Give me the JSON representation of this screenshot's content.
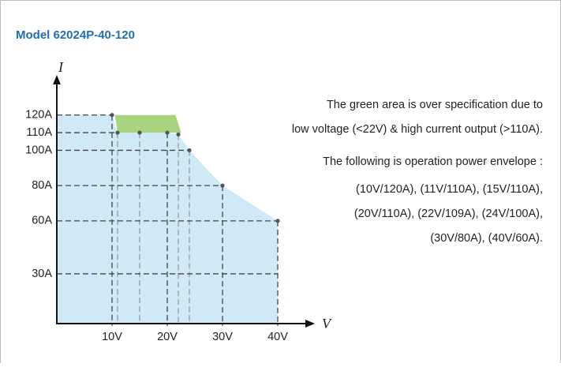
{
  "chart_data": {
    "type": "envelope",
    "title": "Model 62024P-40-120",
    "x_label": "V",
    "y_label": "I",
    "x": [
      10,
      11,
      15,
      20,
      22,
      24,
      30,
      40
    ],
    "values": [
      120,
      110,
      110,
      110,
      109,
      100,
      80,
      60
    ],
    "color": "#cfe9f7",
    "over_spec": {
      "color": "#a9d47f",
      "x": [
        10.5,
        21.5,
        22.5,
        11
      ],
      "values": [
        120,
        120,
        110,
        110
      ]
    },
    "xlim": [
      0,
      45
    ],
    "ylim": [
      0,
      140
    ],
    "xticks": [
      {
        "value": 10,
        "label": "10V"
      },
      {
        "value": 20,
        "label": "20V"
      },
      {
        "value": 30,
        "label": "30V"
      },
      {
        "value": 40,
        "label": "40V"
      }
    ],
    "yticks": [
      {
        "value": 30,
        "label": "30A"
      },
      {
        "value": 60,
        "label": "60A"
      },
      {
        "value": 80,
        "label": "80A"
      },
      {
        "value": 100,
        "label": "100A"
      },
      {
        "value": 110,
        "label": "110A"
      },
      {
        "value": 120,
        "label": "120A"
      }
    ],
    "annotations": [
      "The green area is over specification  due to",
      "low voltage (<22V) & high current output (>110A)."
    ],
    "envelope_title": "The following is operation power envelope :",
    "envelope_lines": [
      "(10V/120A), (11V/110A), (15V/110A),",
      "(20V/110A), (22V/109A), (24V/100A),",
      "(30V/80A), (40V/60A)."
    ]
  }
}
